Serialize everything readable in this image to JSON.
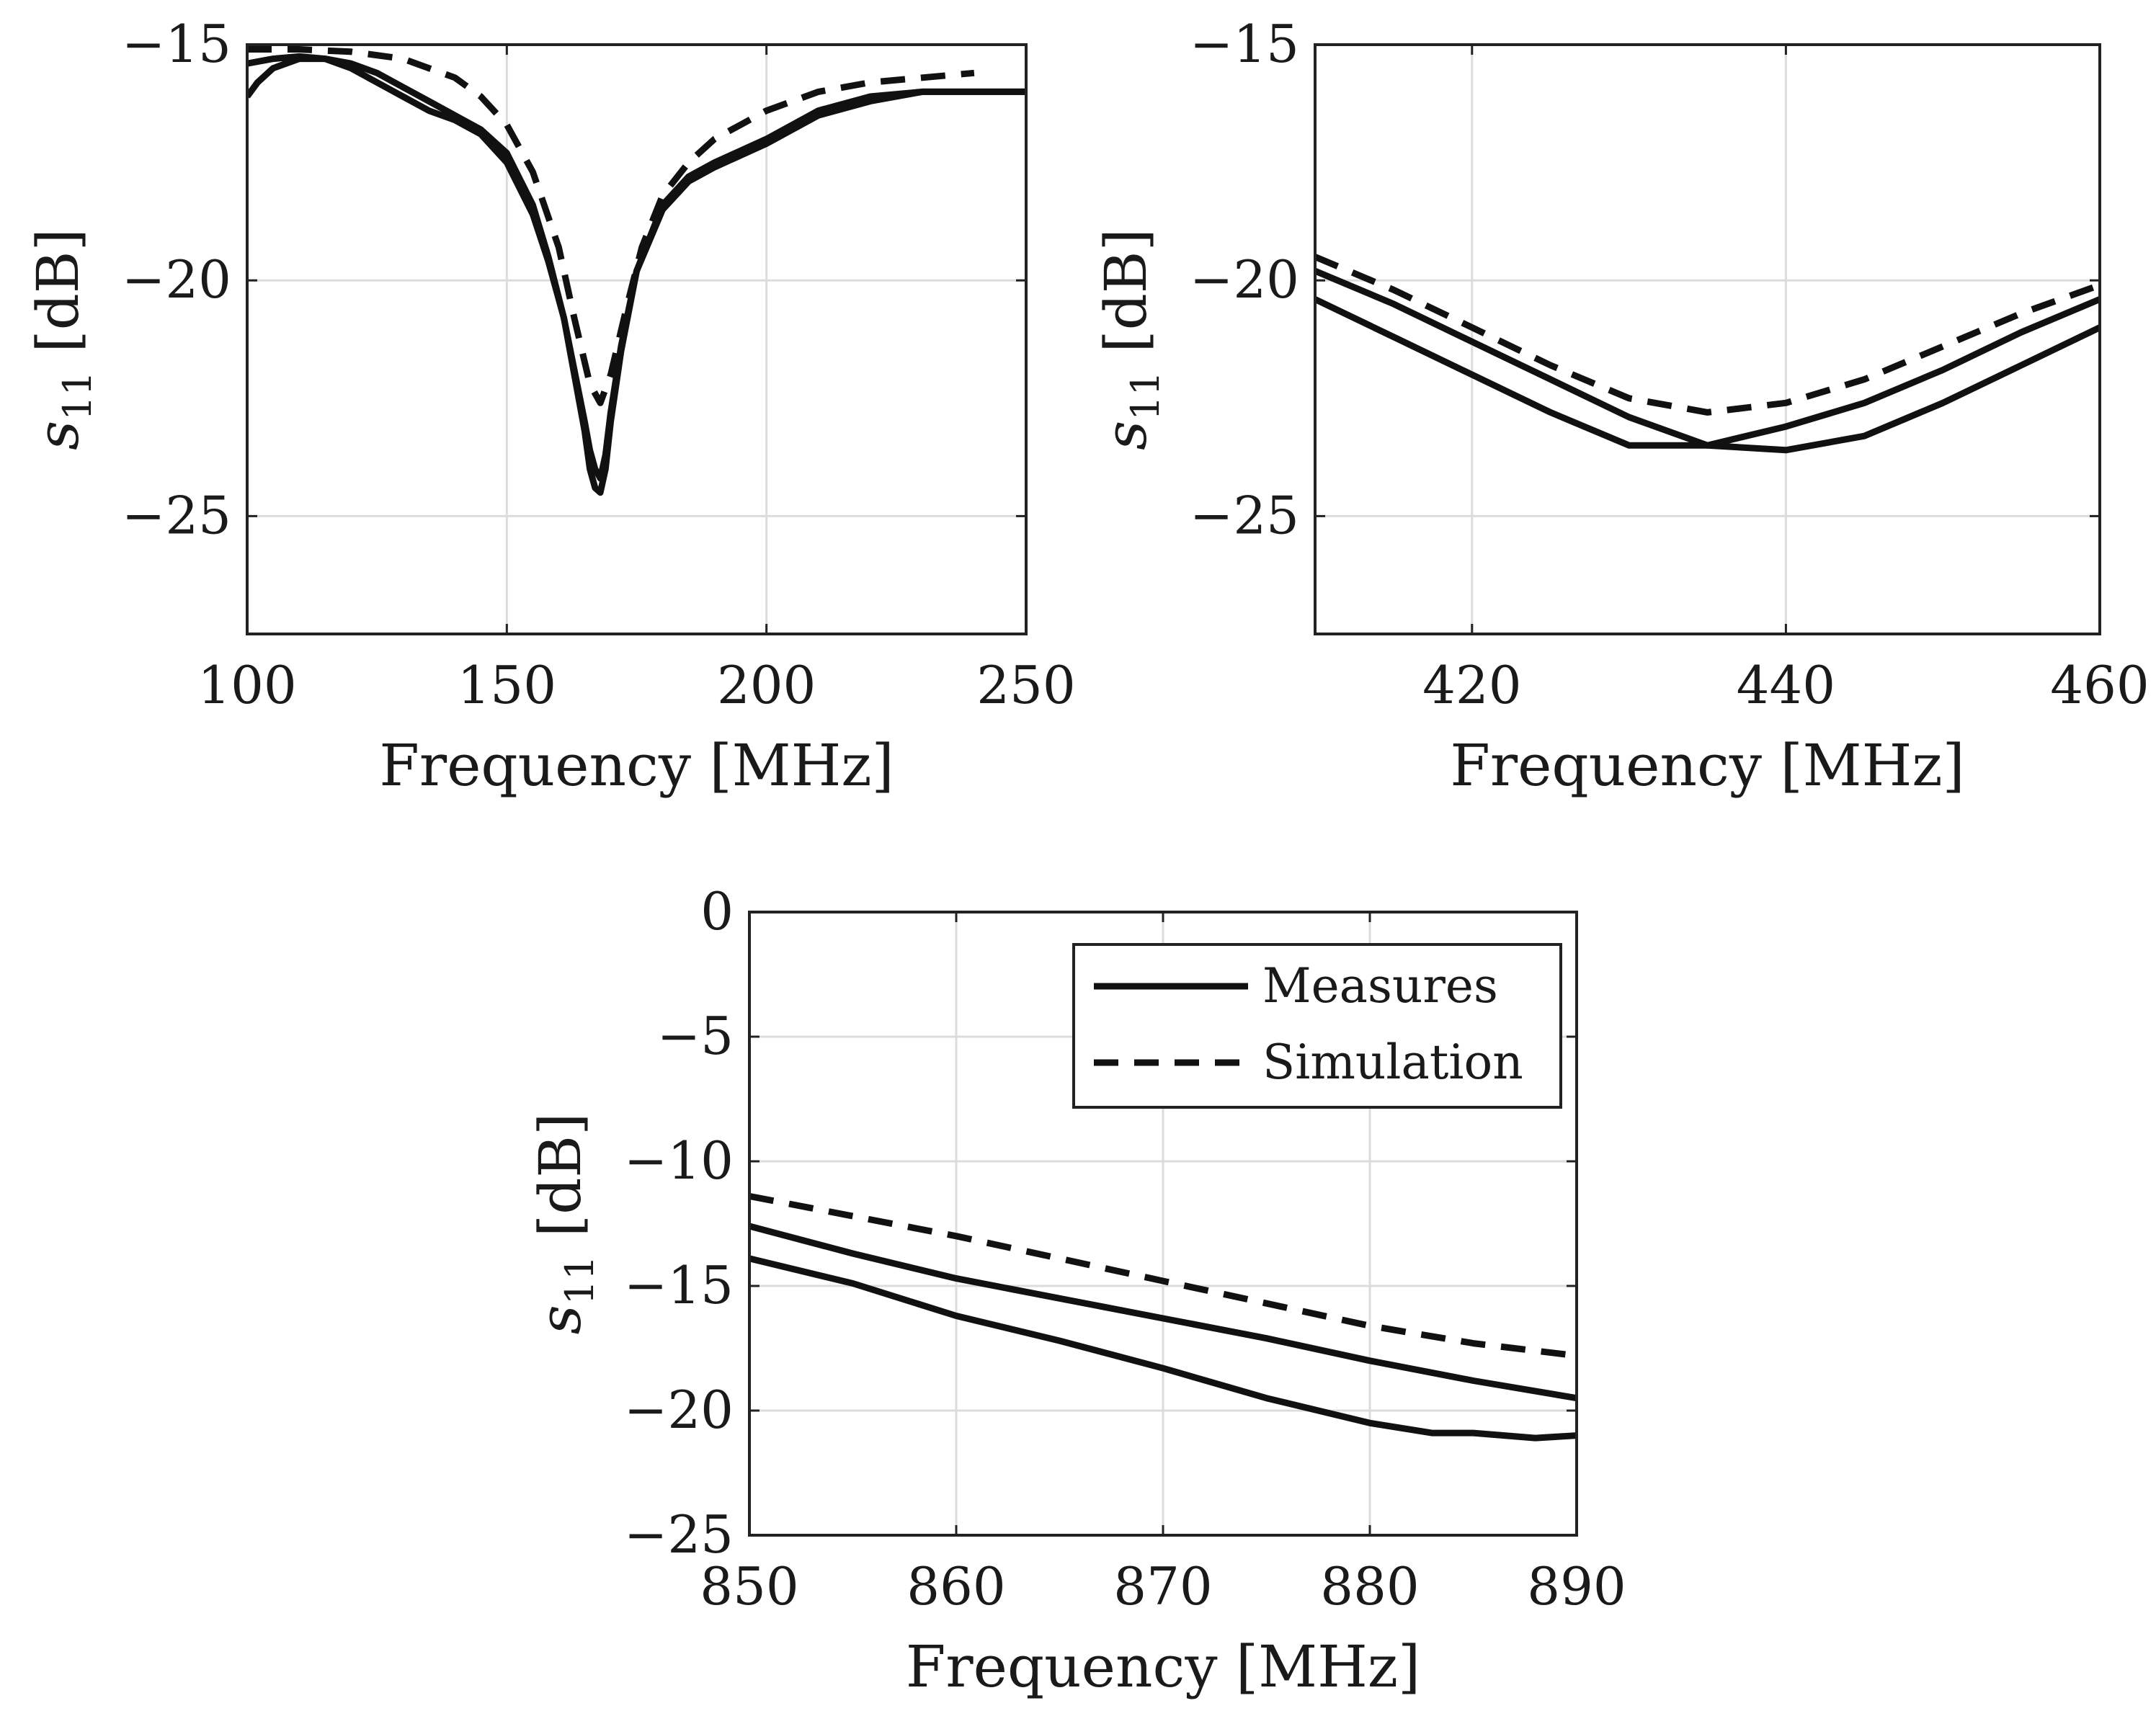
{
  "chart_data": [
    {
      "id": "top-left",
      "type": "line",
      "title": "",
      "xlabel": "Frequency [MHz]",
      "ylabel": "s11 [dB]",
      "ylabel_main": "s",
      "ylabel_sub": "11",
      "ylabel_unit": "[dB]",
      "xlim": [
        100,
        250
      ],
      "ylim": [
        -27.5,
        -15
      ],
      "xticks": [
        100,
        150,
        200,
        250
      ],
      "yticks": [
        -25,
        -20,
        -15
      ],
      "xtick_labels": [
        "100",
        "150",
        "200",
        "250"
      ],
      "ytick_labels": [
        "−25",
        "−20",
        "−15"
      ],
      "grid": true,
      "series": [
        {
          "name": "Measures",
          "style": "solid",
          "x": [
            100,
            102,
            105,
            110,
            115,
            120,
            125,
            130,
            135,
            140,
            145,
            150,
            155,
            158,
            161,
            163,
            165,
            166,
            167,
            168,
            169,
            170,
            172,
            175,
            180,
            185,
            190,
            200,
            210,
            220,
            230,
            240,
            250
          ],
          "y": [
            -16.1,
            -15.8,
            -15.5,
            -15.3,
            -15.3,
            -15.5,
            -15.8,
            -16.1,
            -16.4,
            -16.6,
            -16.9,
            -17.5,
            -18.6,
            -19.6,
            -20.8,
            -21.9,
            -23.0,
            -23.6,
            -24.0,
            -24.2,
            -23.7,
            -22.8,
            -21.4,
            -19.8,
            -18.5,
            -17.9,
            -17.6,
            -17.1,
            -16.5,
            -16.2,
            -16.0,
            -16.0,
            -16.0
          ]
        },
        {
          "name": "Measures",
          "style": "solid",
          "x": [
            100,
            105,
            110,
            115,
            120,
            125,
            130,
            135,
            140,
            145,
            150,
            155,
            158,
            161,
            163,
            165,
            166,
            167,
            168,
            169,
            170,
            172,
            175,
            180,
            185,
            190,
            200,
            210,
            220,
            230,
            240,
            250
          ],
          "y": [
            -15.4,
            -15.3,
            -15.25,
            -15.3,
            -15.4,
            -15.6,
            -15.9,
            -16.2,
            -16.5,
            -16.8,
            -17.3,
            -18.4,
            -19.5,
            -20.8,
            -22.0,
            -23.2,
            -24.0,
            -24.4,
            -24.5,
            -24.0,
            -23.0,
            -21.5,
            -19.8,
            -18.4,
            -17.8,
            -17.5,
            -17.0,
            -16.4,
            -16.1,
            -16.0,
            -16.0,
            -16.0
          ]
        },
        {
          "name": "Simulation",
          "style": "dashed",
          "x": [
            100,
            110,
            120,
            130,
            140,
            145,
            150,
            155,
            160,
            163,
            166,
            168,
            170,
            173,
            176,
            180,
            185,
            190,
            200,
            210,
            220,
            230,
            240
          ],
          "y": [
            -15.1,
            -15.1,
            -15.15,
            -15.3,
            -15.7,
            -16.1,
            -16.7,
            -17.7,
            -19.3,
            -20.8,
            -22.2,
            -22.6,
            -22.0,
            -20.6,
            -19.3,
            -18.2,
            -17.5,
            -17.0,
            -16.4,
            -16.0,
            -15.8,
            -15.7,
            -15.6
          ]
        }
      ]
    },
    {
      "id": "top-right",
      "type": "line",
      "title": "",
      "xlabel": "Frequency [MHz]",
      "ylabel": "s11 [dB]",
      "ylabel_main": "s",
      "ylabel_sub": "11",
      "ylabel_unit": "[dB]",
      "xlim": [
        410,
        460
      ],
      "ylim": [
        -27.5,
        -15
      ],
      "xticks": [
        420,
        440,
        460
      ],
      "yticks": [
        -25,
        -20,
        -15
      ],
      "xtick_labels": [
        "420",
        "440",
        "460"
      ],
      "ytick_labels": [
        "−25",
        "−20",
        "−15"
      ],
      "grid": true,
      "series": [
        {
          "name": "Measures",
          "style": "solid",
          "x": [
            410,
            415,
            420,
            425,
            430,
            435,
            440,
            445,
            450,
            455,
            460
          ],
          "y": [
            -20.4,
            -21.2,
            -22.0,
            -22.8,
            -23.5,
            -23.5,
            -23.6,
            -23.3,
            -22.6,
            -21.8,
            -21.0
          ]
        },
        {
          "name": "Measures",
          "style": "solid",
          "x": [
            410,
            415,
            420,
            425,
            430,
            435,
            440,
            445,
            450,
            455,
            460
          ],
          "y": [
            -19.8,
            -20.5,
            -21.3,
            -22.1,
            -22.9,
            -23.5,
            -23.1,
            -22.6,
            -21.9,
            -21.1,
            -20.4
          ]
        },
        {
          "name": "Simulation",
          "style": "dashed",
          "x": [
            410,
            415,
            420,
            425,
            430,
            435,
            440,
            445,
            450,
            455,
            460
          ],
          "y": [
            -19.5,
            -20.2,
            -21.0,
            -21.8,
            -22.5,
            -22.8,
            -22.6,
            -22.1,
            -21.4,
            -20.7,
            -20.1
          ]
        }
      ]
    },
    {
      "id": "bottom",
      "type": "line",
      "title": "",
      "xlabel": "Frequency [MHz]",
      "ylabel": "s11 [dB]",
      "ylabel_main": "s",
      "ylabel_sub": "11",
      "ylabel_unit": "[dB]",
      "xlim": [
        850,
        890
      ],
      "ylim": [
        -25,
        0
      ],
      "xticks": [
        850,
        860,
        870,
        880,
        890
      ],
      "yticks": [
        -25,
        -20,
        -15,
        -10,
        -5,
        0
      ],
      "xtick_labels": [
        "850",
        "860",
        "870",
        "880",
        "890"
      ],
      "ytick_labels": [
        "−25",
        "−20",
        "−15",
        "−10",
        "−5",
        "0"
      ],
      "grid": true,
      "legend": {
        "placement": "top-right",
        "entries": [
          {
            "label": "Measures",
            "style": "solid"
          },
          {
            "label": "Simulation",
            "style": "dashed"
          }
        ]
      },
      "series": [
        {
          "name": "Measures",
          "style": "solid",
          "x": [
            850,
            855,
            860,
            865,
            870,
            875,
            880,
            883,
            885,
            888,
            890
          ],
          "y": [
            -13.9,
            -14.9,
            -16.2,
            -17.2,
            -18.3,
            -19.5,
            -20.5,
            -20.9,
            -20.9,
            -21.1,
            -21.0
          ]
        },
        {
          "name": "Measures",
          "style": "solid",
          "x": [
            850,
            855,
            860,
            865,
            870,
            875,
            880,
            885,
            890
          ],
          "y": [
            -12.6,
            -13.7,
            -14.7,
            -15.5,
            -16.3,
            -17.1,
            -18.0,
            -18.8,
            -19.5
          ]
        },
        {
          "name": "Simulation",
          "style": "dashed",
          "x": [
            850,
            855,
            860,
            865,
            870,
            875,
            880,
            885,
            890
          ],
          "y": [
            -11.4,
            -12.2,
            -13.0,
            -13.9,
            -14.8,
            -15.7,
            -16.6,
            -17.3,
            -17.8
          ]
        }
      ]
    }
  ]
}
